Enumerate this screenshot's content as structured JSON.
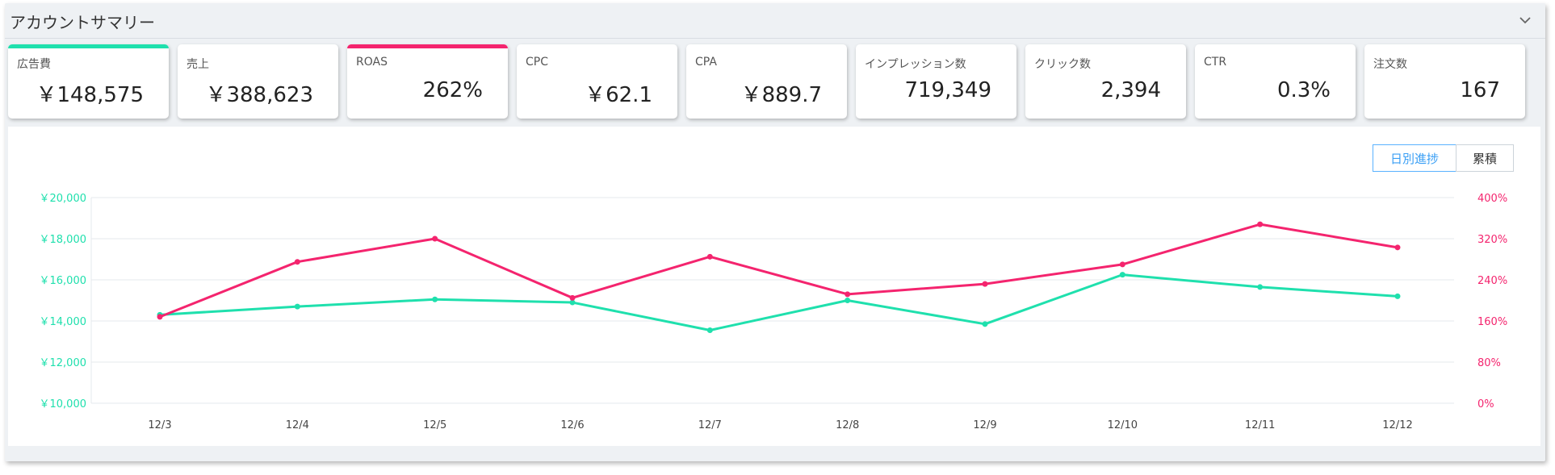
{
  "header": {
    "title": "アカウントサマリー"
  },
  "colors": {
    "green": "#1fe0ad",
    "pink": "#f4246e"
  },
  "metrics": [
    {
      "label": "広告費",
      "value": "￥148,575",
      "accent": "green"
    },
    {
      "label": "売上",
      "value": "￥388,623"
    },
    {
      "label": "ROAS",
      "value": "262%",
      "accent": "pink"
    },
    {
      "label": "CPC",
      "value": "￥62.1"
    },
    {
      "label": "CPA",
      "value": "￥889.7"
    },
    {
      "label": "インプレッション数",
      "value": "719,349"
    },
    {
      "label": "クリック数",
      "value": "2,394"
    },
    {
      "label": "CTR",
      "value": "0.3%"
    },
    {
      "label": "注文数",
      "value": "167"
    }
  ],
  "toggles": {
    "daily": "日別進捗",
    "cumulative": "累積",
    "selected": "daily"
  },
  "chart_data": {
    "type": "line",
    "categories": [
      "12/3",
      "12/4",
      "12/5",
      "12/6",
      "12/7",
      "12/8",
      "12/9",
      "12/10",
      "12/11",
      "12/12"
    ],
    "y_left_ticks": [
      "￥10,000",
      "￥12,000",
      "￥14,000",
      "￥16,000",
      "￥18,000",
      "￥20,000"
    ],
    "y_right_ticks": [
      "0%",
      "80%",
      "160%",
      "240%",
      "320%",
      "400%"
    ],
    "ylim_left": [
      10000,
      20000
    ],
    "ylim_right": [
      0,
      400
    ],
    "grid": true,
    "series": [
      {
        "color": "green",
        "axis": "left",
        "values": [
          14300,
          14700,
          15050,
          14900,
          13550,
          15000,
          13850,
          16250,
          15650,
          15200
        ]
      },
      {
        "color": "pink",
        "axis": "right",
        "values": [
          168,
          275,
          320,
          205,
          285,
          212,
          232,
          270,
          348,
          303
        ]
      }
    ]
  }
}
